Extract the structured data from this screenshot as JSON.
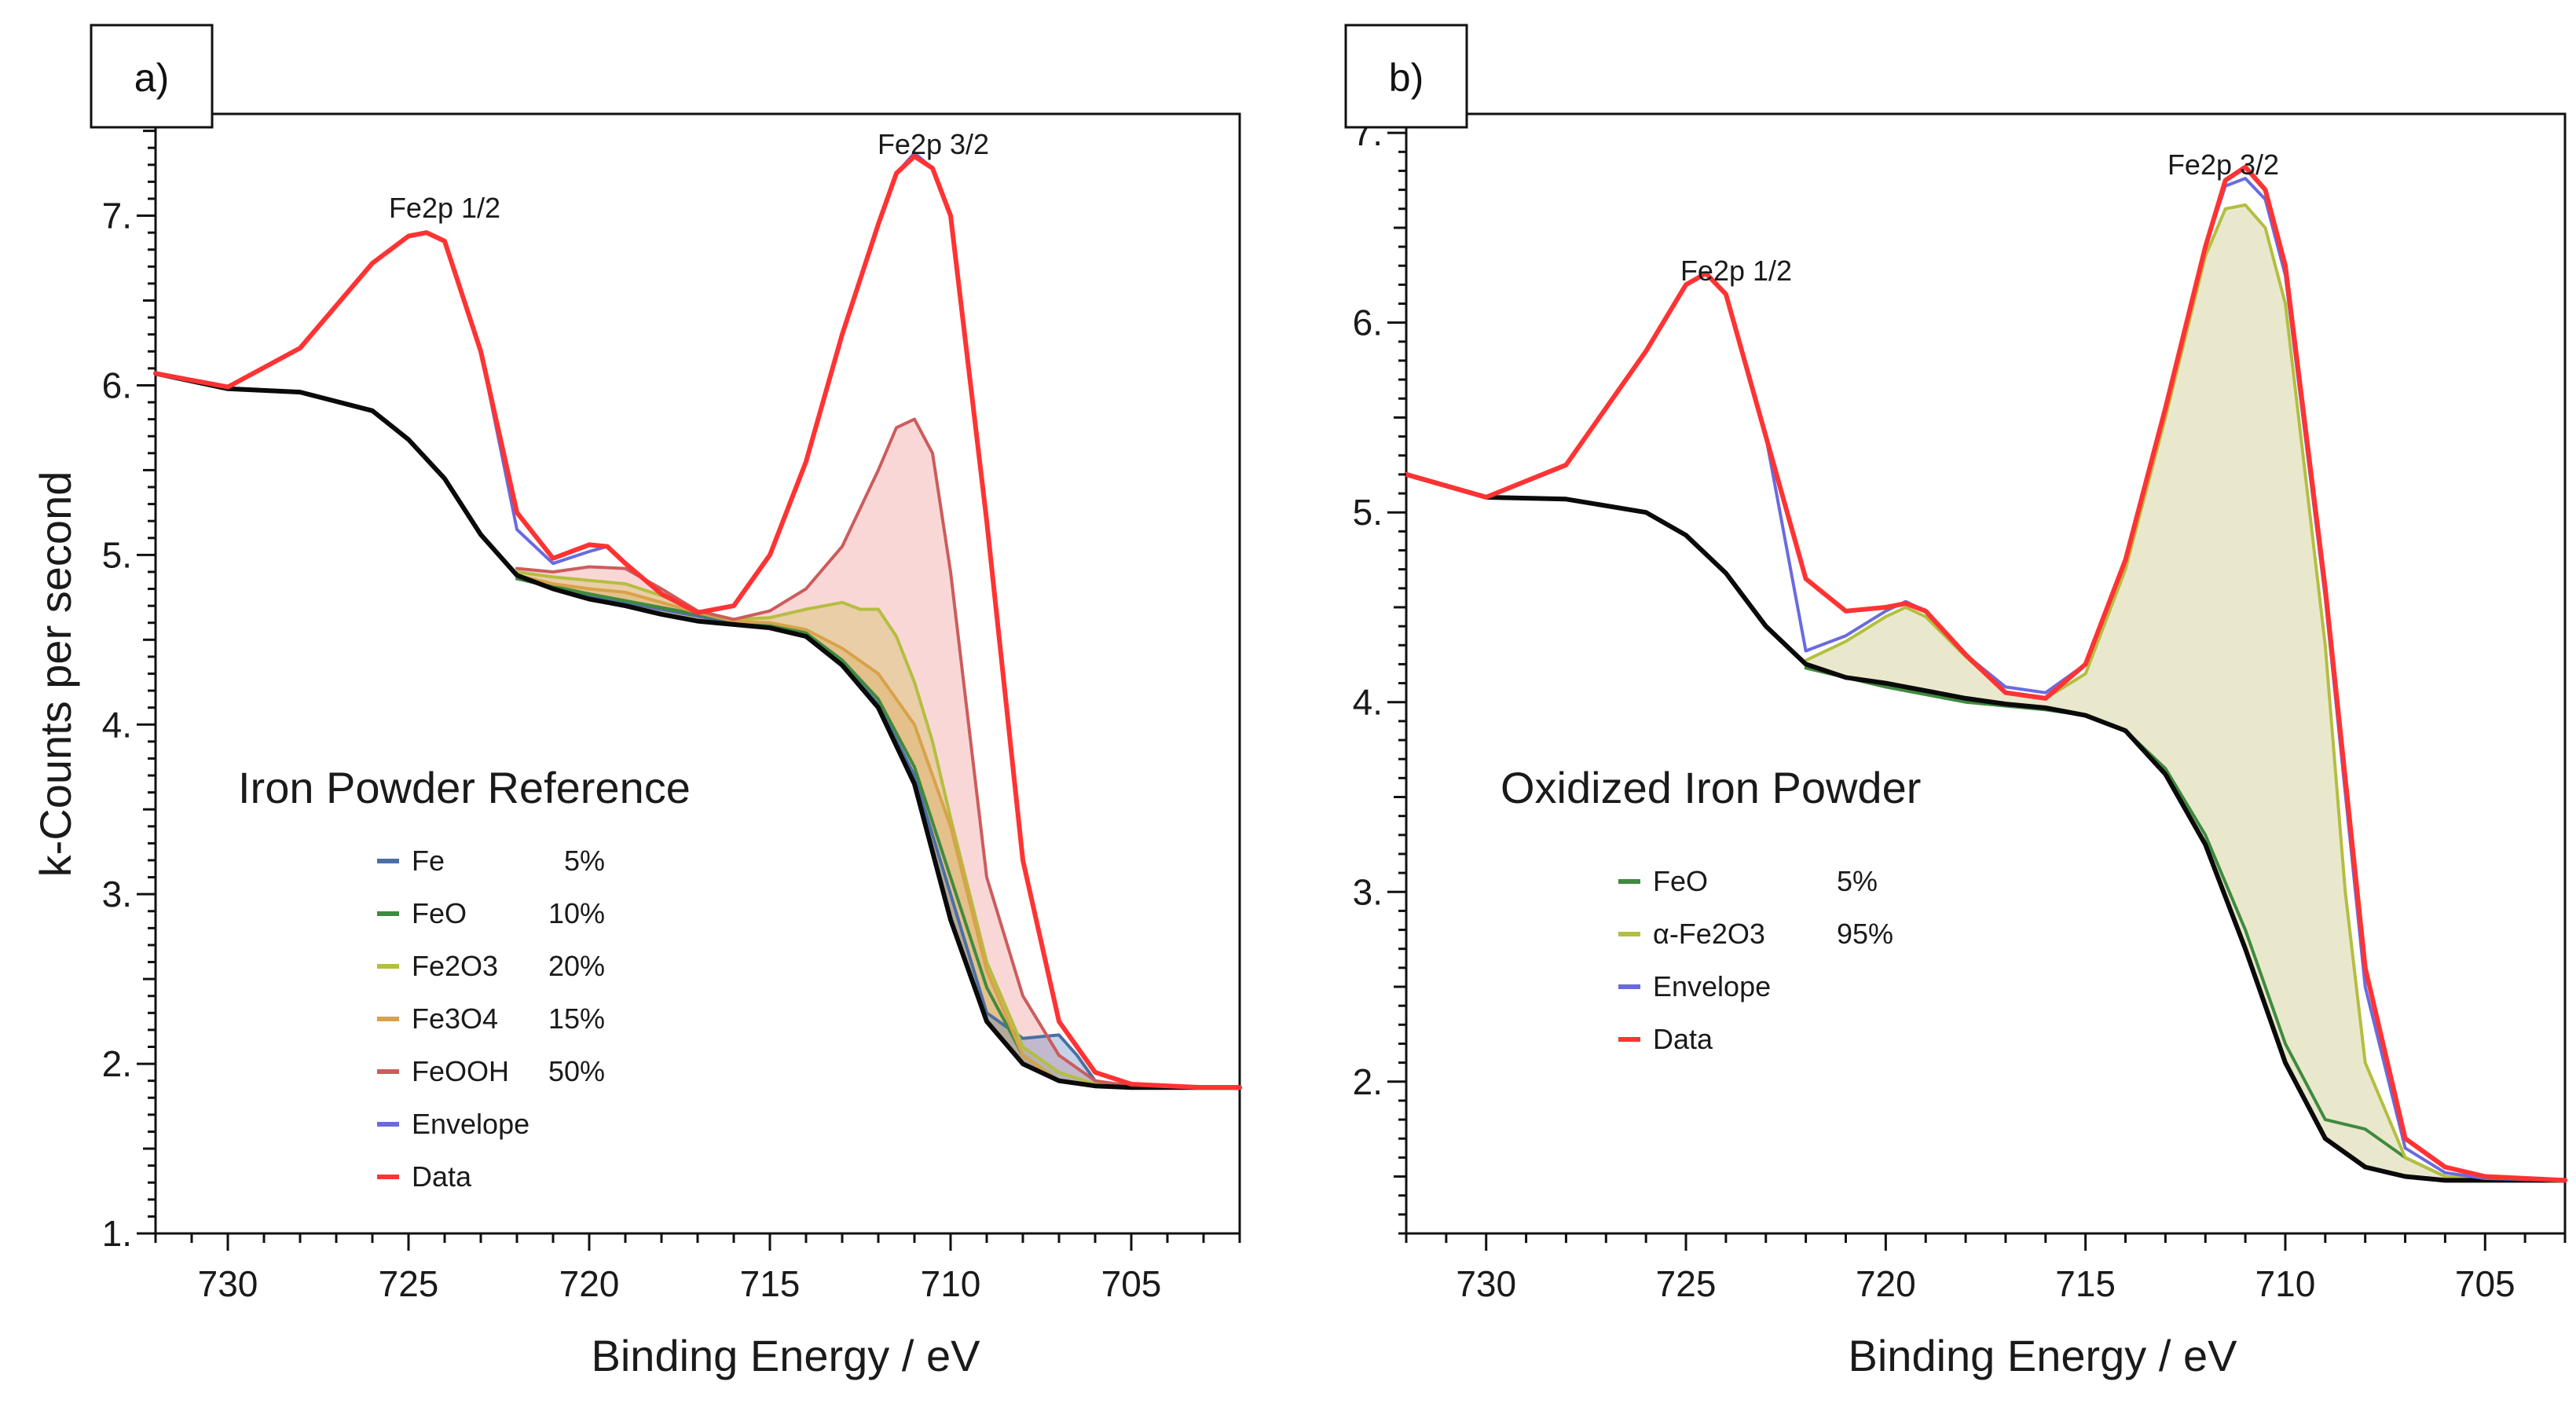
{
  "chart_data": [
    {
      "type": "line",
      "panel_label": "a)",
      "title": "Iron Powder Reference",
      "xlabel": "Binding Energy / eV",
      "ylabel": "k-Counts per second",
      "xlim": [
        732,
        702
      ],
      "ylim": [
        1.0,
        7.6
      ],
      "xticks": [
        730,
        725,
        720,
        715,
        710,
        705
      ],
      "xtick_labels": [
        "730",
        "725",
        "720",
        "715",
        "710",
        "705"
      ],
      "yticks": [
        1,
        2,
        3,
        4,
        5,
        6,
        7
      ],
      "ytick_labels": [
        "1.",
        "2.",
        "3.",
        "4.",
        "5.",
        "6.",
        "7."
      ],
      "annotations": [
        {
          "text": "Fe2p 1/2",
          "x": 724.5,
          "y": 6.92
        },
        {
          "text": "Fe2p 3/2",
          "x": 711.0,
          "y": 7.36
        }
      ],
      "legend": [
        {
          "name": "Fe",
          "value": "5%",
          "color": "#4a6fa5"
        },
        {
          "name": "FeO",
          "value": "10%",
          "color": "#3f8a3f"
        },
        {
          "name": "Fe2O3",
          "value": "20%",
          "color": "#b4be40"
        },
        {
          "name": "Fe3O4",
          "value": "15%",
          "color": "#d8a24a"
        },
        {
          "name": "FeOOH",
          "value": "50%",
          "color": "#cc5c5c"
        },
        {
          "name": "Envelope",
          "value": "",
          "color": "#6a6ae0"
        },
        {
          "name": "Data",
          "value": "",
          "color": "#ff3333"
        }
      ],
      "series": [
        {
          "name": "Data",
          "color": "#ff3333",
          "x": [
            732,
            730,
            728,
            726,
            725,
            724.5,
            724,
            723,
            722,
            721,
            720,
            719.5,
            719,
            718,
            717,
            716,
            715,
            714,
            713,
            712,
            711.5,
            711,
            710.5,
            710,
            709,
            708,
            707,
            706,
            705,
            703,
            702
          ],
          "y": [
            6.07,
            5.99,
            6.22,
            6.72,
            6.88,
            6.9,
            6.85,
            6.2,
            5.25,
            4.98,
            5.06,
            5.05,
            4.95,
            4.77,
            4.66,
            4.7,
            5.0,
            5.55,
            6.3,
            6.95,
            7.25,
            7.35,
            7.28,
            7.0,
            5.2,
            3.2,
            2.25,
            1.95,
            1.88,
            1.86,
            1.86
          ]
        },
        {
          "name": "Envelope",
          "color": "#6a6ae0",
          "x": [
            732,
            730,
            728,
            726,
            725,
            724.5,
            724,
            723,
            722,
            721,
            720,
            719.5,
            719,
            718,
            717,
            716,
            715,
            714,
            713,
            712,
            711.5,
            711,
            710.5,
            710,
            709,
            708,
            707,
            706,
            705,
            703,
            702
          ],
          "y": [
            6.07,
            5.99,
            6.22,
            6.72,
            6.88,
            6.9,
            6.85,
            6.2,
            5.15,
            4.95,
            5.02,
            5.05,
            4.95,
            4.77,
            4.66,
            4.7,
            5.0,
            5.55,
            6.3,
            6.95,
            7.25,
            7.37,
            7.28,
            7.0,
            5.2,
            3.2,
            2.25,
            1.95,
            1.88,
            1.86,
            1.86
          ]
        },
        {
          "name": "FeOOH",
          "color": "#cc5c5c",
          "fill": "rgba(240,140,140,0.35)",
          "x": [
            722,
            721,
            720,
            719,
            718,
            717,
            716,
            715,
            714,
            713,
            712,
            711.5,
            711,
            710.5,
            710,
            709.5,
            709,
            708,
            707,
            706,
            705
          ],
          "y": [
            4.92,
            4.9,
            4.93,
            4.92,
            4.8,
            4.67,
            4.62,
            4.67,
            4.8,
            5.05,
            5.5,
            5.75,
            5.8,
            5.6,
            4.9,
            4.0,
            3.1,
            2.4,
            2.05,
            1.9,
            1.87
          ]
        },
        {
          "name": "Fe2O3",
          "color": "#b4be40",
          "fill": "rgba(200,190,80,0.35)",
          "x": [
            722,
            721,
            720,
            719,
            718,
            717,
            716,
            715,
            714,
            713,
            712.5,
            712,
            711.5,
            711,
            710.5,
            710,
            709,
            708,
            707,
            706,
            705
          ],
          "y": [
            4.9,
            4.87,
            4.85,
            4.83,
            4.76,
            4.67,
            4.62,
            4.63,
            4.68,
            4.72,
            4.68,
            4.68,
            4.52,
            4.25,
            3.9,
            3.45,
            2.6,
            2.1,
            1.95,
            1.88,
            1.86
          ]
        },
        {
          "name": "Fe3O4",
          "color": "#d8a24a",
          "fill": "rgba(220,160,70,0.3)",
          "x": [
            722,
            721,
            720,
            719,
            718,
            717,
            716,
            715,
            714,
            713,
            712,
            711,
            710,
            709,
            708,
            707,
            706,
            705
          ],
          "y": [
            4.88,
            4.83,
            4.8,
            4.78,
            4.72,
            4.66,
            4.61,
            4.6,
            4.56,
            4.45,
            4.3,
            4.0,
            3.4,
            2.55,
            2.05,
            1.9,
            1.87,
            1.86
          ]
        },
        {
          "name": "FeO",
          "color": "#3f8a3f",
          "x": [
            722,
            720,
            718,
            716,
            715,
            714,
            713,
            712,
            711,
            710,
            709,
            708,
            707,
            706,
            705
          ],
          "y": [
            4.86,
            4.77,
            4.69,
            4.61,
            4.59,
            4.54,
            4.38,
            4.15,
            3.75,
            3.1,
            2.45,
            2.05,
            1.9,
            1.87,
            1.86
          ]
        },
        {
          "name": "Fe",
          "color": "#4a6fa5",
          "fill": "rgba(90,130,190,0.35)",
          "x": [
            722,
            720,
            718,
            716,
            715,
            714,
            713,
            712,
            711,
            710,
            709,
            708,
            707.5,
            707,
            706.5,
            706,
            705
          ],
          "y": [
            4.86,
            4.76,
            4.68,
            4.6,
            4.57,
            4.52,
            4.36,
            4.12,
            3.7,
            3.0,
            2.3,
            2.15,
            2.16,
            2.17,
            2.05,
            1.9,
            1.86
          ]
        },
        {
          "name": "Background",
          "color": "#0a0a0a",
          "x": [
            732,
            730,
            728,
            726,
            725,
            724,
            723,
            722,
            721,
            720,
            719,
            718,
            717,
            716,
            715,
            714,
            713,
            712,
            711,
            710,
            709,
            708,
            707,
            706,
            705,
            703,
            702
          ],
          "y": [
            6.07,
            5.98,
            5.96,
            5.85,
            5.68,
            5.45,
            5.12,
            4.88,
            4.8,
            4.74,
            4.7,
            4.65,
            4.61,
            4.59,
            4.57,
            4.52,
            4.35,
            4.1,
            3.65,
            2.85,
            2.25,
            2.0,
            1.9,
            1.87,
            1.86,
            1.86,
            1.86
          ]
        }
      ]
    },
    {
      "type": "line",
      "panel_label": "b)",
      "title": "Oxidized Iron Powder",
      "xlabel": "Binding Energy / eV",
      "ylabel": "",
      "xlim": [
        732,
        703
      ],
      "ylim": [
        1.2,
        7.1
      ],
      "xticks": [
        730,
        725,
        720,
        715,
        710,
        705
      ],
      "xtick_labels": [
        "730",
        "725",
        "720",
        "715",
        "710",
        "705"
      ],
      "yticks": [
        2,
        3,
        4,
        5,
        6,
        7
      ],
      "ytick_labels": [
        "2.",
        "3.",
        "4.",
        "5.",
        "6.",
        "7."
      ],
      "annotations": [
        {
          "text": "Fe2p 1/2",
          "x": 724.5,
          "y": 6.26
        },
        {
          "text": "Fe2p 3/2",
          "x": 711.0,
          "y": 6.82
        }
      ],
      "legend": [
        {
          "name": "FeO",
          "value": "5%",
          "color": "#3f8a3f"
        },
        {
          "name": "α-Fe2O3",
          "value": "95%",
          "color": "#b4be40"
        },
        {
          "name": "Envelope",
          "value": "",
          "color": "#6a6ae0"
        },
        {
          "name": "Data",
          "value": "",
          "color": "#ff3333"
        }
      ],
      "series": [
        {
          "name": "Data",
          "color": "#ff3333",
          "x": [
            732,
            730,
            728,
            726,
            725,
            724.5,
            724,
            723,
            722,
            721,
            720,
            719.5,
            719,
            718,
            717,
            716,
            715,
            714,
            713,
            712,
            711.5,
            711,
            710.5,
            710,
            709,
            708,
            707,
            706,
            705,
            703
          ],
          "y": [
            5.2,
            5.08,
            5.25,
            5.85,
            6.2,
            6.26,
            6.15,
            5.4,
            4.65,
            4.48,
            4.5,
            4.52,
            4.48,
            4.25,
            4.05,
            4.02,
            4.2,
            4.75,
            5.55,
            6.4,
            6.75,
            6.82,
            6.7,
            6.3,
            4.6,
            2.6,
            1.7,
            1.55,
            1.5,
            1.48
          ]
        },
        {
          "name": "Envelope",
          "color": "#6a6ae0",
          "x": [
            732,
            730,
            728,
            726,
            725,
            724.5,
            724,
            723,
            722,
            721,
            720,
            719.5,
            719,
            718,
            717,
            716,
            715,
            714,
            713,
            712,
            711.5,
            711,
            710.5,
            710,
            709,
            708,
            707,
            706,
            705,
            703
          ],
          "y": [
            5.2,
            5.08,
            5.25,
            5.85,
            6.2,
            6.26,
            6.15,
            5.4,
            4.27,
            4.35,
            4.48,
            4.53,
            4.48,
            4.25,
            4.08,
            4.05,
            4.2,
            4.75,
            5.55,
            6.4,
            6.72,
            6.76,
            6.65,
            6.25,
            4.55,
            2.5,
            1.65,
            1.52,
            1.49,
            1.48
          ]
        },
        {
          "name": "α-Fe2O3",
          "color": "#b4be40",
          "fill": "rgba(195,190,110,0.35)",
          "x": [
            722,
            721,
            720,
            719.5,
            719,
            718,
            717,
            716,
            715,
            714,
            713,
            712,
            711.5,
            711,
            710.5,
            710,
            709,
            708.5,
            708,
            707,
            706,
            705
          ],
          "y": [
            4.22,
            4.32,
            4.45,
            4.5,
            4.45,
            4.24,
            4.05,
            4.02,
            4.15,
            4.7,
            5.5,
            6.35,
            6.6,
            6.62,
            6.5,
            6.1,
            4.3,
            3.0,
            2.1,
            1.6,
            1.5,
            1.48
          ]
        },
        {
          "name": "FeO",
          "color": "#3f8a3f",
          "x": [
            722,
            720,
            718,
            716,
            715,
            714,
            713,
            712,
            711,
            710,
            709,
            708,
            707,
            706,
            705
          ],
          "y": [
            4.18,
            4.08,
            4.0,
            3.96,
            3.93,
            3.85,
            3.65,
            3.3,
            2.8,
            2.2,
            1.8,
            1.75,
            1.6,
            1.5,
            1.48
          ]
        },
        {
          "name": "Background",
          "color": "#0a0a0a",
          "x": [
            732,
            730,
            728,
            726,
            725,
            724,
            723,
            722,
            721,
            720,
            719,
            718,
            717,
            716,
            715,
            714,
            713,
            712,
            711,
            710,
            709,
            708,
            707,
            706,
            705,
            703
          ],
          "y": [
            5.2,
            5.08,
            5.07,
            5.0,
            4.88,
            4.68,
            4.4,
            4.2,
            4.13,
            4.1,
            4.06,
            4.02,
            3.99,
            3.97,
            3.93,
            3.85,
            3.62,
            3.25,
            2.7,
            2.1,
            1.7,
            1.55,
            1.5,
            1.48,
            1.48,
            1.48
          ]
        }
      ]
    }
  ]
}
